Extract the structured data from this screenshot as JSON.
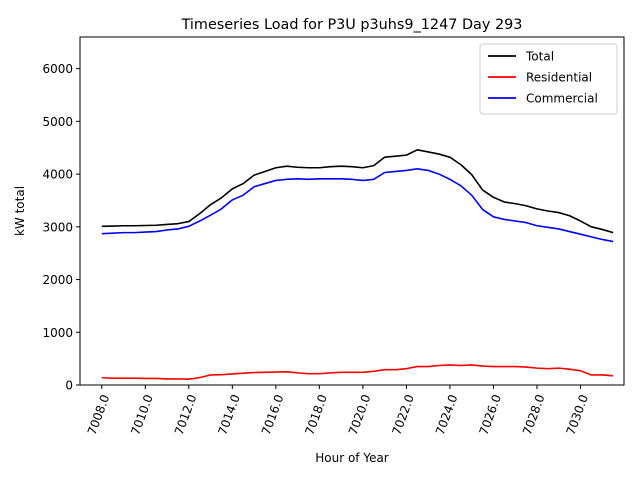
{
  "chart_data": {
    "type": "line",
    "title": "Timeseries Load for P3U p3uhs9_1247  Day 293",
    "xlabel": "Hour of Year",
    "ylabel": "kW total",
    "xlim": [
      7007.0,
      7032.0
    ],
    "ylim": [
      0,
      6600
    ],
    "xticks": [
      7008,
      7010,
      7012,
      7014,
      7016,
      7018,
      7020,
      7022,
      7024,
      7026,
      7028,
      7030
    ],
    "xtick_labels": [
      "7008.0",
      "7010.0",
      "7012.0",
      "7014.0",
      "7016.0",
      "7018.0",
      "7020.0",
      "7022.0",
      "7024.0",
      "7026.0",
      "7028.0",
      "7030.0"
    ],
    "yticks": [
      0,
      1000,
      2000,
      3000,
      4000,
      5000,
      6000
    ],
    "ytick_labels": [
      "0",
      "1000",
      "2000",
      "3000",
      "4000",
      "5000",
      "6000"
    ],
    "legend_position": "top-right",
    "x": [
      7008.0,
      7008.5,
      7009.0,
      7009.5,
      7010.0,
      7010.5,
      7011.0,
      7011.5,
      7012.0,
      7012.5,
      7013.0,
      7013.5,
      7014.0,
      7014.5,
      7015.0,
      7015.5,
      7016.0,
      7016.5,
      7017.0,
      7017.5,
      7018.0,
      7018.5,
      7019.0,
      7019.5,
      7020.0,
      7020.5,
      7021.0,
      7021.5,
      7022.0,
      7022.5,
      7023.0,
      7023.5,
      7024.0,
      7024.5,
      7025.0,
      7025.5,
      7026.0,
      7026.5,
      7027.0,
      7027.5,
      7028.0,
      7028.5,
      7029.0,
      7029.5,
      7030.0,
      7030.5,
      7031.0,
      7031.5
    ],
    "series": [
      {
        "name": "Total",
        "color": "#000000",
        "values": [
          3010,
          3015,
          3020,
          3020,
          3025,
          3030,
          3045,
          3060,
          3100,
          3250,
          3420,
          3550,
          3720,
          3820,
          3980,
          4050,
          4120,
          4150,
          4130,
          4120,
          4120,
          4140,
          4150,
          4140,
          4120,
          4160,
          4320,
          4340,
          4360,
          4460,
          4420,
          4380,
          4320,
          4180,
          3990,
          3700,
          3560,
          3470,
          3440,
          3400,
          3340,
          3300,
          3270,
          3210,
          3110,
          3000,
          2950,
          2890
        ]
      },
      {
        "name": "Residential",
        "color": "#ff0000",
        "values": [
          140,
          130,
          130,
          130,
          125,
          125,
          115,
          115,
          110,
          140,
          190,
          195,
          210,
          225,
          235,
          240,
          245,
          250,
          230,
          215,
          215,
          230,
          240,
          240,
          240,
          260,
          290,
          290,
          310,
          350,
          350,
          370,
          380,
          370,
          380,
          360,
          350,
          350,
          350,
          340,
          320,
          310,
          320,
          300,
          270,
          190,
          190,
          175
        ]
      },
      {
        "name": "Commercial",
        "color": "#0000ff",
        "values": [
          2870,
          2880,
          2890,
          2890,
          2900,
          2910,
          2940,
          2960,
          3010,
          3110,
          3220,
          3340,
          3510,
          3600,
          3760,
          3820,
          3880,
          3900,
          3910,
          3900,
          3910,
          3910,
          3910,
          3900,
          3880,
          3900,
          4030,
          4050,
          4070,
          4100,
          4070,
          4000,
          3900,
          3780,
          3600,
          3330,
          3190,
          3140,
          3110,
          3080,
          3020,
          2990,
          2960,
          2910,
          2860,
          2810,
          2760,
          2720
        ]
      }
    ]
  }
}
